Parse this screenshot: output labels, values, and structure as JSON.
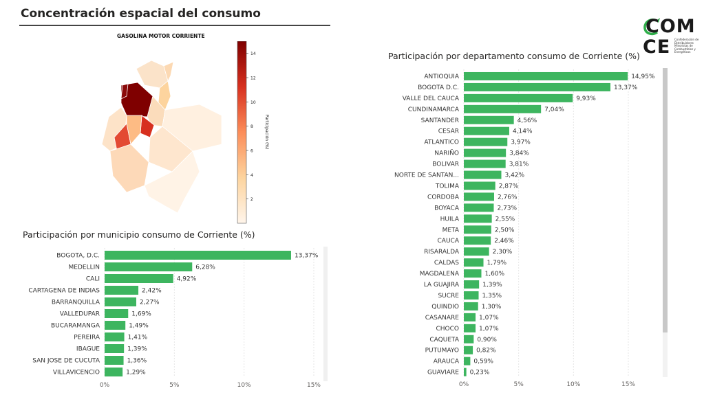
{
  "header": {
    "title": "Concentración espacial del consumo"
  },
  "logo": {
    "text_line1": "COM",
    "text_line2": "CE",
    "tagline": "Confederación de Distribuidores Minoristas de Combustibles y Energéticos"
  },
  "map": {
    "title": "GASOLINA MOTOR CORRIENTE",
    "colorbar_label": "Participación (%)",
    "colorbar_ticks": [
      "2",
      "4",
      "6",
      "8",
      "10",
      "12",
      "14"
    ],
    "colorbar_range": [
      0,
      15
    ]
  },
  "colors": {
    "bar": "#3db55f",
    "grid": "#e6e6e6",
    "scrollbar": "#c8c8c8"
  },
  "chart_data": [
    {
      "type": "bar",
      "orientation": "horizontal",
      "title": "Participación por municipio consumo de Corriente (%)",
      "categories": [
        "BOGOTA, D.C.",
        "MEDELLIN",
        "CALI",
        "CARTAGENA DE INDIAS",
        "BARRANQUILLA",
        "VALLEDUPAR",
        "BUCARAMANGA",
        "PEREIRA",
        "IBAGUE",
        "SAN JOSE DE CUCUTA",
        "VILLAVICENCIO"
      ],
      "values": [
        13.37,
        6.28,
        4.92,
        2.42,
        2.27,
        1.69,
        1.49,
        1.41,
        1.39,
        1.36,
        1.29
      ],
      "labels": [
        "13,37%",
        "6,28%",
        "4,92%",
        "2,42%",
        "2,27%",
        "1,69%",
        "1,49%",
        "1,41%",
        "1,39%",
        "1,36%",
        "1,29%"
      ],
      "xticks": [
        "0%",
        "5%",
        "10%",
        "15%"
      ],
      "xlim": [
        0,
        15
      ]
    },
    {
      "type": "bar",
      "orientation": "horizontal",
      "title": "Participación por departamento consumo de Corriente (%)",
      "categories": [
        "ANTIOQUIA",
        "BOGOTA D.C.",
        "VALLE DEL CAUCA",
        "CUNDINAMARCA",
        "SANTANDER",
        "CESAR",
        "ATLANTICO",
        "NARIÑO",
        "BOLIVAR",
        "NORTE DE SANTAN...",
        "TOLIMA",
        "CORDOBA",
        "BOYACA",
        "HUILA",
        "META",
        "CAUCA",
        "RISARALDA",
        "CALDAS",
        "MAGDALENA",
        "LA GUAJIRA",
        "SUCRE",
        "QUINDIO",
        "CASANARE",
        "CHOCO",
        "CAQUETA",
        "PUTUMAYO",
        "ARAUCA",
        "GUAVIARE"
      ],
      "values": [
        14.95,
        13.37,
        9.93,
        7.04,
        4.56,
        4.14,
        3.97,
        3.84,
        3.81,
        3.42,
        2.87,
        2.76,
        2.73,
        2.55,
        2.5,
        2.46,
        2.3,
        1.79,
        1.6,
        1.39,
        1.35,
        1.3,
        1.07,
        1.07,
        0.9,
        0.82,
        0.59,
        0.23
      ],
      "labels": [
        "14,95%",
        "13,37%",
        "9,93%",
        "7,04%",
        "4,56%",
        "4,14%",
        "3,97%",
        "3,84%",
        "3,81%",
        "3,42%",
        "2,87%",
        "2,76%",
        "2,73%",
        "2,55%",
        "2,50%",
        "2,46%",
        "2,30%",
        "1,79%",
        "1,60%",
        "1,39%",
        "1,35%",
        "1,30%",
        "1,07%",
        "1,07%",
        "0,90%",
        "0,82%",
        "0,59%",
        "0,23%"
      ],
      "xticks": [
        "0%",
        "5%",
        "10%",
        "15%"
      ],
      "xlim": [
        0,
        15
      ]
    }
  ]
}
